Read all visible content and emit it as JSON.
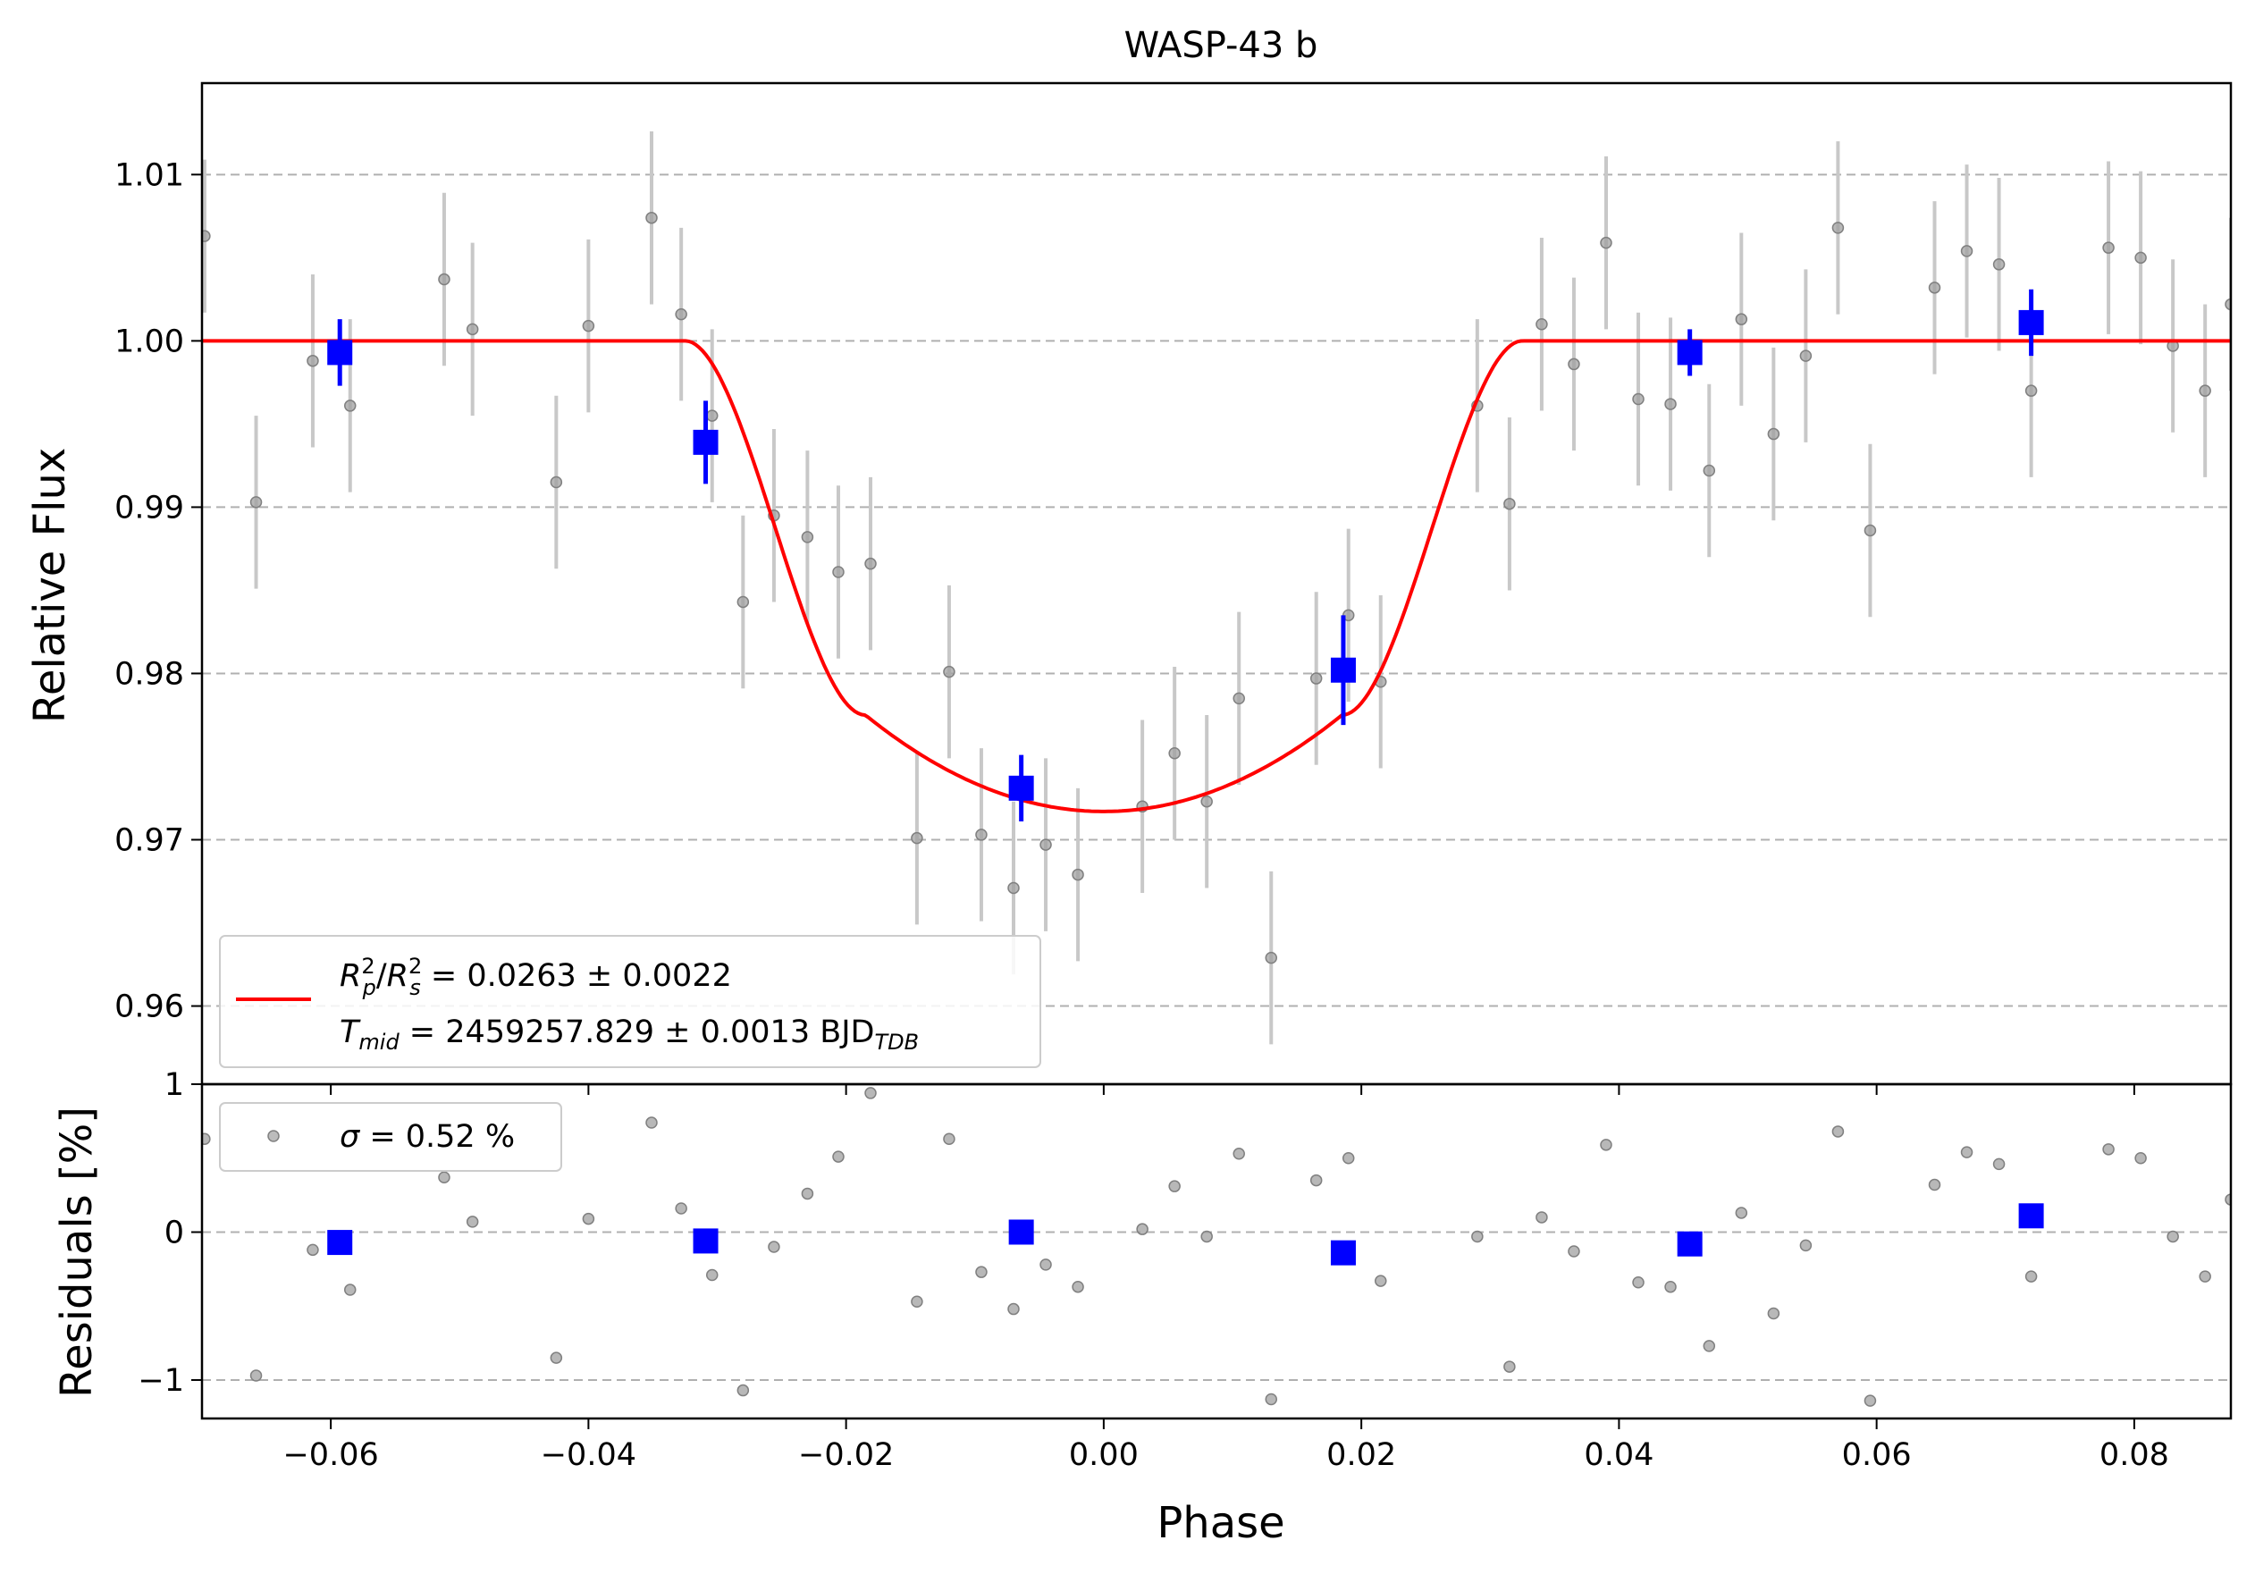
{
  "chart_data": [
    {
      "type": "scatter",
      "title": "WASP-43 b",
      "xlabel": "",
      "ylabel": "Relative Flux",
      "xlim": [
        -0.07,
        0.0875
      ],
      "ylim": [
        0.9553,
        1.0155
      ],
      "grid": "horizontal dashed",
      "x_ticks": [
        -0.06,
        -0.04,
        -0.02,
        0.0,
        0.02,
        0.04,
        0.06,
        0.08
      ],
      "y_ticks": [
        0.96,
        0.97,
        0.98,
        0.99,
        1.0,
        1.01
      ],
      "y_tick_labels": [
        "0.96",
        "0.97",
        "0.98",
        "0.99",
        "1.00",
        "1.01"
      ],
      "legend": {
        "placement": "lower-left",
        "line1_prefix": "R",
        "line1_value": " = 0.0263 ± 0.0022",
        "line2_prefix": "T",
        "line2_sub": "mid",
        "line2_value": " = 2459257.829 ± 0.0013 BJD",
        "line2_unit_sub": "TDB"
      },
      "series": [
        {
          "role": "data",
          "color": "#808080",
          "points": [
            {
              "x": -0.0698,
              "y": 1.0063,
              "err": 0.0046
            },
            {
              "x": -0.0658,
              "y": 0.9903,
              "err": 0.0052
            },
            {
              "x": -0.0614,
              "y": 0.9988,
              "err": 0.0052
            },
            {
              "x": -0.0585,
              "y": 0.9961,
              "err": 0.0052
            },
            {
              "x": -0.0512,
              "y": 1.0037,
              "err": 0.0052
            },
            {
              "x": -0.049,
              "y": 1.0007,
              "err": 0.0052
            },
            {
              "x": -0.0425,
              "y": 0.9915,
              "err": 0.0052
            },
            {
              "x": -0.04,
              "y": 1.0009,
              "err": 0.0052
            },
            {
              "x": -0.0351,
              "y": 1.0074,
              "err": 0.0052
            },
            {
              "x": -0.0328,
              "y": 1.0016,
              "err": 0.0052
            },
            {
              "x": -0.0304,
              "y": 0.9955,
              "err": 0.0052
            },
            {
              "x": -0.028,
              "y": 0.9843,
              "err": 0.0052
            },
            {
              "x": -0.0256,
              "y": 0.9895,
              "err": 0.0052
            },
            {
              "x": -0.023,
              "y": 0.9882,
              "err": 0.0052
            },
            {
              "x": -0.0206,
              "y": 0.9861,
              "err": 0.0052
            },
            {
              "x": -0.0181,
              "y": 0.9866,
              "err": 0.0052
            },
            {
              "x": -0.0145,
              "y": 0.9701,
              "err": 0.0052
            },
            {
              "x": -0.012,
              "y": 0.9801,
              "err": 0.0052
            },
            {
              "x": -0.0095,
              "y": 0.9703,
              "err": 0.0052
            },
            {
              "x": -0.007,
              "y": 0.9671,
              "err": 0.0052
            },
            {
              "x": -0.0045,
              "y": 0.9697,
              "err": 0.0052
            },
            {
              "x": -0.002,
              "y": 0.9679,
              "err": 0.0052
            },
            {
              "x": 0.003,
              "y": 0.972,
              "err": 0.0052
            },
            {
              "x": 0.0055,
              "y": 0.9752,
              "err": 0.0052
            },
            {
              "x": 0.008,
              "y": 0.9723,
              "err": 0.0052
            },
            {
              "x": 0.0105,
              "y": 0.9785,
              "err": 0.0052
            },
            {
              "x": 0.013,
              "y": 0.9629,
              "err": 0.0052
            },
            {
              "x": 0.0165,
              "y": 0.9797,
              "err": 0.0052
            },
            {
              "x": 0.019,
              "y": 0.9835,
              "err": 0.0052
            },
            {
              "x": 0.0215,
              "y": 0.9795,
              "err": 0.0052
            },
            {
              "x": 0.029,
              "y": 0.9961,
              "err": 0.0052
            },
            {
              "x": 0.0315,
              "y": 0.9902,
              "err": 0.0052
            },
            {
              "x": 0.034,
              "y": 1.001,
              "err": 0.0052
            },
            {
              "x": 0.0365,
              "y": 0.9986,
              "err": 0.0052
            },
            {
              "x": 0.039,
              "y": 1.0059,
              "err": 0.0052
            },
            {
              "x": 0.0415,
              "y": 0.9965,
              "err": 0.0052
            },
            {
              "x": 0.044,
              "y": 0.9962,
              "err": 0.0052
            },
            {
              "x": 0.047,
              "y": 0.9922,
              "err": 0.0052
            },
            {
              "x": 0.0495,
              "y": 1.0013,
              "err": 0.0052
            },
            {
              "x": 0.052,
              "y": 0.9944,
              "err": 0.0052
            },
            {
              "x": 0.0545,
              "y": 0.9991,
              "err": 0.0052
            },
            {
              "x": 0.057,
              "y": 1.0068,
              "err": 0.0052
            },
            {
              "x": 0.0595,
              "y": 0.9886,
              "err": 0.0052
            },
            {
              "x": 0.0645,
              "y": 1.0032,
              "err": 0.0052
            },
            {
              "x": 0.067,
              "y": 1.0054,
              "err": 0.0052
            },
            {
              "x": 0.0695,
              "y": 1.0046,
              "err": 0.0052
            },
            {
              "x": 0.072,
              "y": 0.997,
              "err": 0.0052
            },
            {
              "x": 0.078,
              "y": 1.0056,
              "err": 0.0052
            },
            {
              "x": 0.0805,
              "y": 1.005,
              "err": 0.0052
            },
            {
              "x": 0.083,
              "y": 0.9997,
              "err": 0.0052
            },
            {
              "x": 0.0855,
              "y": 0.997,
              "err": 0.0052
            },
            {
              "x": 0.0875,
              "y": 1.0022,
              "err": 0.0052
            }
          ]
        },
        {
          "role": "binned",
          "color": "#0000ff",
          "points": [
            {
              "x": -0.0593,
              "y": 0.9993,
              "err": 0.002
            },
            {
              "x": -0.0309,
              "y": 0.9939,
              "err": 0.0025
            },
            {
              "x": -0.0064,
              "y": 0.9731,
              "err": 0.002
            },
            {
              "x": 0.0186,
              "y": 0.9802,
              "err": 0.0033
            },
            {
              "x": 0.0455,
              "y": 0.9993,
              "err": 0.0014
            },
            {
              "x": 0.072,
              "y": 1.0011,
              "err": 0.002
            }
          ]
        },
        {
          "role": "model",
          "color": "#ff0000",
          "params": {
            "depth": 0.0263,
            "t_start": -0.0325,
            "t_full": -0.0185,
            "floor_min": 0.9717,
            "floor_edge": 0.9775
          }
        }
      ]
    },
    {
      "type": "scatter",
      "title": "",
      "xlabel": "Phase",
      "ylabel": "Residuals [%]",
      "xlim": [
        -0.07,
        0.0875
      ],
      "ylim": [
        -1.26,
        1.0
      ],
      "grid": "horizontal dashed",
      "x_ticks": [
        -0.06,
        -0.04,
        -0.02,
        0.0,
        0.02,
        0.04,
        0.06,
        0.08
      ],
      "x_tick_labels": [
        "−0.06",
        "−0.04",
        "−0.02",
        "0.00",
        "0.02",
        "0.04",
        "0.06",
        "0.08"
      ],
      "y_ticks": [
        -1,
        0,
        1
      ],
      "y_tick_labels": [
        "−1",
        "0",
        "1"
      ],
      "legend": {
        "placement": "top-left",
        "prefix": "σ",
        "value": " = 0.52 %"
      },
      "series": [
        {
          "role": "residuals",
          "color": "#808080",
          "points": [
            {
              "x": -0.0698,
              "y": 0.63
            },
            {
              "x": -0.0658,
              "y": -0.97
            },
            {
              "x": -0.0614,
              "y": -0.12
            },
            {
              "x": -0.0585,
              "y": -0.39
            },
            {
              "x": -0.0512,
              "y": 0.37
            },
            {
              "x": -0.049,
              "y": 0.07
            },
            {
              "x": -0.0425,
              "y": -0.85
            },
            {
              "x": -0.04,
              "y": 0.09
            },
            {
              "x": -0.0351,
              "y": 0.74
            },
            {
              "x": -0.0328,
              "y": 0.16
            },
            {
              "x": -0.0304,
              "y": -0.29
            },
            {
              "x": -0.028,
              "y": -1.07
            },
            {
              "x": -0.0256,
              "y": -0.1
            },
            {
              "x": -0.023,
              "y": 0.26
            },
            {
              "x": -0.0206,
              "y": 0.51
            },
            {
              "x": -0.0181,
              "y": 0.94
            },
            {
              "x": -0.0145,
              "y": -0.47
            },
            {
              "x": -0.012,
              "y": 0.63
            },
            {
              "x": -0.0095,
              "y": -0.27
            },
            {
              "x": -0.007,
              "y": -0.52
            },
            {
              "x": -0.0045,
              "y": -0.22
            },
            {
              "x": -0.002,
              "y": -0.37
            },
            {
              "x": 0.003,
              "y": 0.02
            },
            {
              "x": 0.0055,
              "y": 0.31
            },
            {
              "x": 0.008,
              "y": -0.03
            },
            {
              "x": 0.0105,
              "y": 0.53
            },
            {
              "x": 0.013,
              "y": -1.13
            },
            {
              "x": 0.0165,
              "y": 0.35
            },
            {
              "x": 0.019,
              "y": 0.5
            },
            {
              "x": 0.0215,
              "y": -0.33
            },
            {
              "x": 0.029,
              "y": -0.03
            },
            {
              "x": 0.0315,
              "y": -0.91
            },
            {
              "x": 0.034,
              "y": 0.1
            },
            {
              "x": 0.0365,
              "y": -0.13
            },
            {
              "x": 0.039,
              "y": 0.59
            },
            {
              "x": 0.0415,
              "y": -0.34
            },
            {
              "x": 0.044,
              "y": -0.37
            },
            {
              "x": 0.047,
              "y": -0.77
            },
            {
              "x": 0.0495,
              "y": 0.13
            },
            {
              "x": 0.052,
              "y": -0.55
            },
            {
              "x": 0.0545,
              "y": -0.09
            },
            {
              "x": 0.057,
              "y": 0.68
            },
            {
              "x": 0.0595,
              "y": -1.14
            },
            {
              "x": 0.0645,
              "y": 0.32
            },
            {
              "x": 0.067,
              "y": 0.54
            },
            {
              "x": 0.0695,
              "y": 0.46
            },
            {
              "x": 0.072,
              "y": -0.3
            },
            {
              "x": 0.078,
              "y": 0.56
            },
            {
              "x": 0.0805,
              "y": 0.5
            },
            {
              "x": 0.083,
              "y": -0.03
            },
            {
              "x": 0.0855,
              "y": -0.3
            },
            {
              "x": 0.0875,
              "y": 0.22
            }
          ]
        },
        {
          "role": "binned",
          "color": "#0000ff",
          "points": [
            {
              "x": -0.0593,
              "y": -0.07
            },
            {
              "x": -0.0309,
              "y": -0.06
            },
            {
              "x": -0.0064,
              "y": 0.0
            },
            {
              "x": 0.0186,
              "y": -0.14
            },
            {
              "x": 0.0455,
              "y": -0.08
            },
            {
              "x": 0.072,
              "y": 0.11
            }
          ]
        }
      ]
    }
  ]
}
